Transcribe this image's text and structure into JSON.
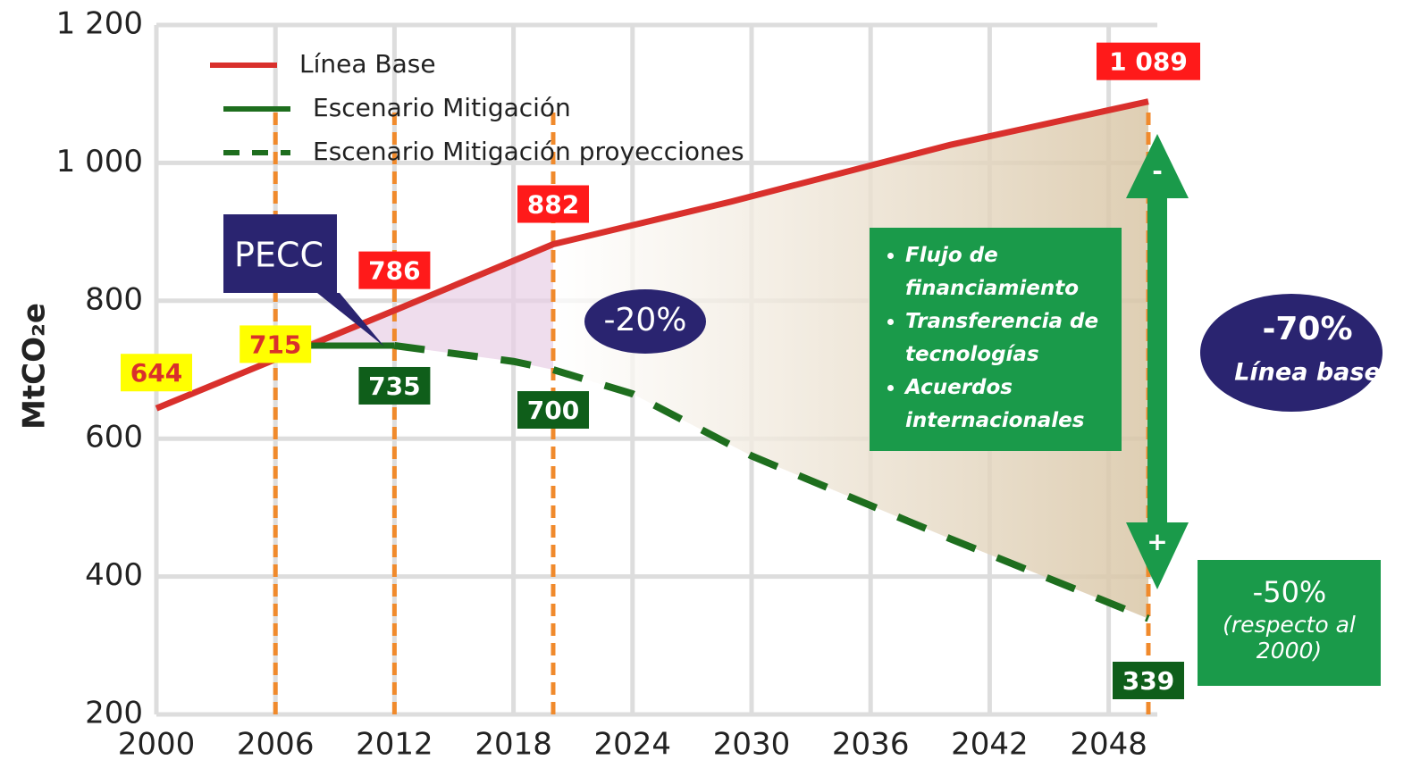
{
  "chart_data": {
    "type": "line",
    "y_label": "MtCO₂e",
    "xlim": [
      2000,
      2050
    ],
    "xticks": [
      2000,
      2006,
      2012,
      2018,
      2024,
      2030,
      2036,
      2042,
      2048
    ],
    "ylim": [
      200,
      1200
    ],
    "yticks": [
      200,
      400,
      600,
      800,
      {
        "value": 1000,
        "label": "1 000"
      },
      {
        "value": 1200,
        "label": "1 200"
      }
    ],
    "grid": true,
    "legend": "top-left",
    "markers_x": [
      2006,
      2012,
      2020,
      2050
    ],
    "series": [
      {
        "name": "Línea Base",
        "color": "#d9302c",
        "style": "solid",
        "x": [
          2000,
          2006,
          2012,
          2020,
          2029,
          2040,
          2050
        ],
        "values": [
          644,
          715,
          786,
          882,
          944,
          1026,
          1089
        ],
        "value_labels": [
          "644",
          "715",
          "786",
          "882",
          null,
          null,
          "1 089"
        ],
        "value_label_colors": [
          "#ffff00",
          "#ffff00",
          "#ff1a1a",
          "#ff1a1a",
          null,
          null,
          "#ff1a1a"
        ]
      },
      {
        "name": "Escenario Mitigación",
        "color": "#1e6e1e",
        "style": "solid",
        "x": [
          2007,
          2012
        ],
        "values": [
          735,
          735
        ],
        "value_labels": [
          null,
          "735"
        ],
        "value_label_colors": [
          null,
          "#0f5e1a"
        ]
      },
      {
        "name": "Escenario Mitigación proyecciones",
        "color": "#1e6e1e",
        "style": "dashed",
        "x": [
          2012,
          2018,
          2020,
          2024,
          2030,
          2040,
          2050
        ],
        "values": [
          735,
          712,
          700,
          665,
          575,
          455,
          339
        ],
        "value_labels": [
          null,
          null,
          "700",
          null,
          null,
          null,
          "339"
        ],
        "value_label_colors": [
          null,
          null,
          "#0f5e1a",
          null,
          null,
          null,
          "#0f5e1a"
        ]
      }
    ],
    "annotations": {
      "pecc": "PECC",
      "reduction_2020": "-20%",
      "reduction_baseline": "-70%",
      "reduction_baseline_note": "Línea base",
      "reduction_2000": "-50%",
      "reduction_2000_note": "(respecto al 2000)",
      "arrow_top": "-",
      "arrow_bottom": "+",
      "bullets": [
        "Flujo de financiamiento",
        "Transferencia de tecnologías",
        "Acuerdos internacionales"
      ]
    }
  }
}
